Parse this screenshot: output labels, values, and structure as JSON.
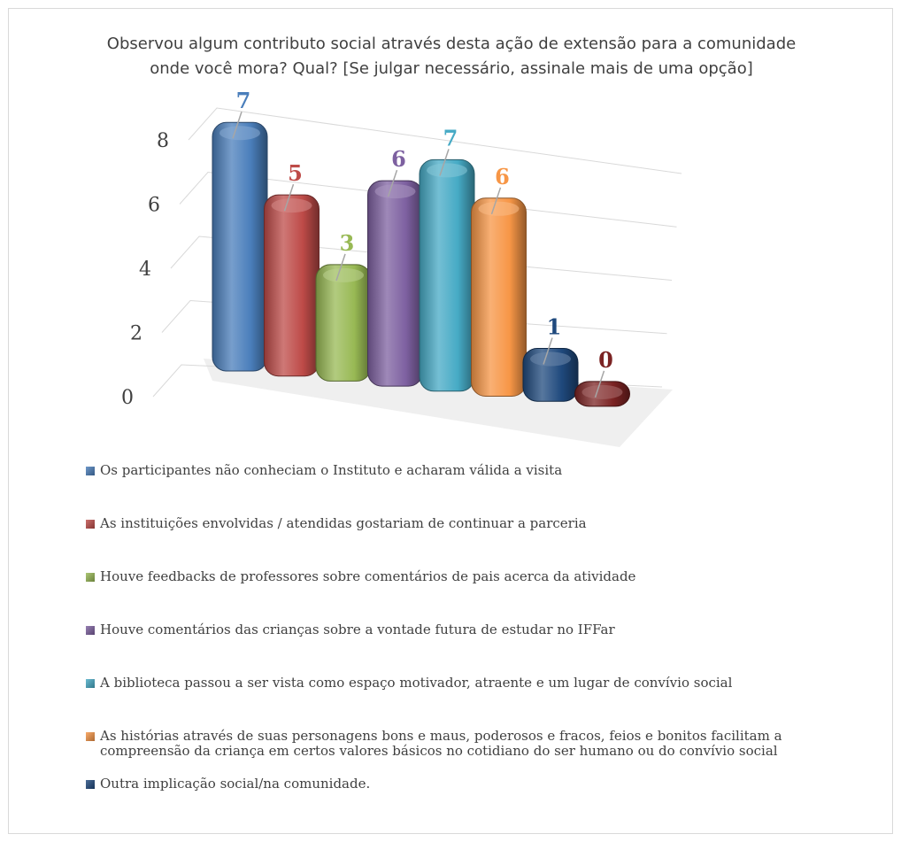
{
  "chart_data": {
    "type": "bar",
    "title": "Observou algum contributo social através desta ação de extensão para a comunidade onde você mora? Qual? [Se julgar necessário, assinale mais de uma opção]",
    "ylim": [
      0,
      8
    ],
    "yticks": [
      "0",
      "2",
      "4",
      "6",
      "8"
    ],
    "grid": true,
    "legend_position": "bottom",
    "style": "3d-rounded-columns",
    "series": [
      {
        "name": "Os participantes não conheciam o Instituto e acharam válida a visita",
        "value": 7,
        "label": "7",
        "color": "#4a7ebb"
      },
      {
        "name": "As instituições envolvidas / atendidas  gostariam de continuar a parceria",
        "value": 5,
        "label": "5",
        "color": "#be4b48"
      },
      {
        "name": "Houve feedbacks de professores sobre comentários de pais acerca da atividade",
        "value": 3,
        "label": "3",
        "color": "#98b954"
      },
      {
        "name": "Houve comentários das crianças sobre a vontade futura de estudar no IFFar",
        "value": 6,
        "label": "6",
        "color": "#7d60a0"
      },
      {
        "name": "A biblioteca passou a ser vista como espaço motivador, atraente e um lugar de convívio social",
        "value": 7,
        "label": "7",
        "color": "#46aac5"
      },
      {
        "name": "As histórias através de suas personagens bons e maus, poderosos e fracos, feios e bonitos facilitam a compreensão da criança em certos valores básicos no cotidiano do ser humano ou do convívio social",
        "value": 6,
        "label": "6",
        "color": "#f79646"
      },
      {
        "name": "Outra implicação social/na comunidade.",
        "value": 1,
        "label": "1",
        "color": "#1f497d"
      },
      {
        "name": "",
        "value": 0,
        "label": "0",
        "color": "#7b2323"
      }
    ]
  }
}
